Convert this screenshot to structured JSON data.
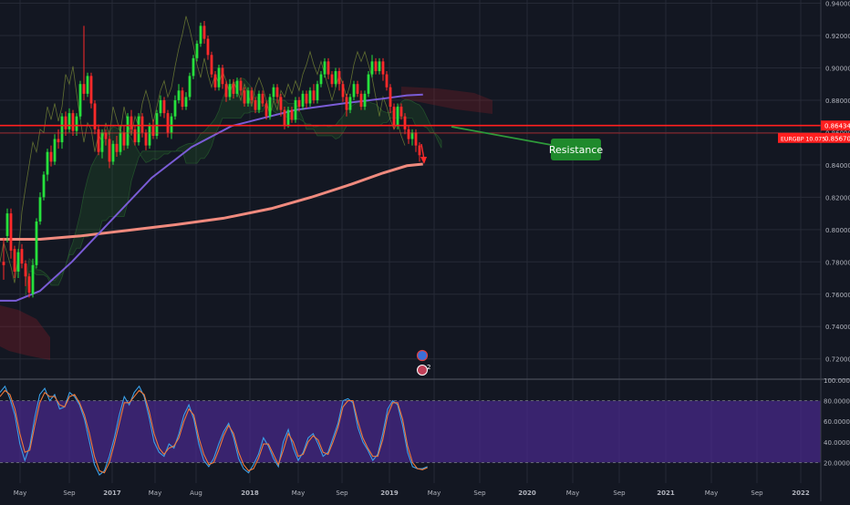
{
  "colors": {
    "bg": "#131722",
    "grid": "#262a36",
    "bull": "#26e03c",
    "bear": "#ff2a2a",
    "ema200": "#f08a7e",
    "ema100": "#7a5cd6",
    "resistance": "#ff1f1f",
    "callout": "#1f8a2c",
    "stoch_band": "#4a2a8e",
    "stoch_k": "#3aa0e8",
    "stoch_d": "#f07a3a"
  },
  "symbol_tag": "EURGBP 10.075",
  "price_labels": {
    "resistance": "0.86434",
    "current": "0.85670"
  },
  "callout": {
    "text": "Resistance"
  },
  "markers": [
    "2"
  ],
  "chart_data": [
    {
      "type": "candlestick",
      "title": "",
      "y_ticks": [
        "0.94000",
        "0.92000",
        "0.90000",
        "0.88000",
        "0.86000",
        "0.84000",
        "0.82000",
        "0.80000",
        "0.78000",
        "0.76000",
        "0.74000",
        "0.72000"
      ],
      "ylim": [
        0.708,
        0.942
      ],
      "x_ticks": [
        "May",
        "Sep",
        "2017",
        "May",
        "Aug",
        "2018",
        "May",
        "Sep",
        "2019",
        "May",
        "Sep",
        "2020",
        "May",
        "Sep",
        "2021",
        "May",
        "Sep",
        "2022"
      ],
      "resistance_level": 0.86434,
      "current_price": 0.8567,
      "ema100": [
        [
          0,
          0.756
        ],
        [
          10,
          0.756
        ],
        [
          25,
          0.762
        ],
        [
          45,
          0.78
        ],
        [
          70,
          0.806
        ],
        [
          95,
          0.832
        ],
        [
          120,
          0.851
        ],
        [
          145,
          0.864
        ],
        [
          165,
          0.869
        ],
        [
          185,
          0.874
        ],
        [
          215,
          0.878
        ],
        [
          240,
          0.881
        ],
        [
          255,
          0.883
        ],
        [
          265,
          0.8835
        ]
      ],
      "ema200": [
        [
          0,
          0.794
        ],
        [
          25,
          0.794
        ],
        [
          50,
          0.796
        ],
        [
          80,
          0.7995
        ],
        [
          110,
          0.803
        ],
        [
          140,
          0.807
        ],
        [
          170,
          0.813
        ],
        [
          195,
          0.82
        ],
        [
          220,
          0.828
        ],
        [
          240,
          0.835
        ],
        [
          255,
          0.8395
        ],
        [
          265,
          0.8405
        ]
      ],
      "candles": [
        [
          0.78,
          0.778,
          0.795,
          0.769
        ],
        [
          0.796,
          0.81,
          0.813,
          0.792
        ],
        [
          0.81,
          0.787,
          0.813,
          0.782
        ],
        [
          0.788,
          0.774,
          0.79,
          0.77
        ],
        [
          0.774,
          0.786,
          0.788,
          0.77
        ],
        [
          0.788,
          0.779,
          0.791,
          0.776
        ],
        [
          0.779,
          0.771,
          0.781,
          0.765
        ],
        [
          0.771,
          0.761,
          0.773,
          0.758
        ],
        [
          0.76,
          0.778,
          0.782,
          0.758
        ],
        [
          0.778,
          0.805,
          0.807,
          0.776
        ],
        [
          0.805,
          0.82,
          0.823,
          0.803
        ],
        [
          0.82,
          0.834,
          0.836,
          0.818
        ],
        [
          0.834,
          0.848,
          0.85,
          0.83
        ],
        [
          0.848,
          0.842,
          0.852,
          0.839
        ],
        [
          0.842,
          0.856,
          0.859,
          0.84
        ],
        [
          0.856,
          0.854,
          0.862,
          0.85
        ],
        [
          0.854,
          0.87,
          0.872,
          0.85
        ],
        [
          0.87,
          0.862,
          0.873,
          0.858
        ],
        [
          0.862,
          0.872,
          0.875,
          0.86
        ],
        [
          0.872,
          0.861,
          0.874,
          0.858
        ],
        [
          0.861,
          0.87,
          0.872,
          0.858
        ],
        [
          0.87,
          0.89,
          0.892,
          0.868
        ],
        [
          0.89,
          0.884,
          0.926,
          0.88
        ],
        [
          0.884,
          0.895,
          0.897,
          0.882
        ],
        [
          0.895,
          0.878,
          0.897,
          0.875
        ],
        [
          0.878,
          0.862,
          0.88,
          0.859
        ],
        [
          0.862,
          0.848,
          0.865,
          0.846
        ],
        [
          0.848,
          0.86,
          0.862,
          0.844
        ],
        [
          0.86,
          0.856,
          0.862,
          0.852
        ],
        [
          0.856,
          0.842,
          0.858,
          0.838
        ],
        [
          0.842,
          0.853,
          0.855,
          0.84
        ],
        [
          0.853,
          0.848,
          0.858,
          0.845
        ],
        [
          0.848,
          0.86,
          0.864,
          0.846
        ],
        [
          0.86,
          0.852,
          0.864,
          0.849
        ],
        [
          0.852,
          0.87,
          0.872,
          0.85
        ],
        [
          0.87,
          0.862,
          0.874,
          0.86
        ],
        [
          0.862,
          0.854,
          0.864,
          0.852
        ],
        [
          0.854,
          0.87,
          0.872,
          0.852
        ],
        [
          0.87,
          0.86,
          0.872,
          0.857
        ],
        [
          0.86,
          0.852,
          0.862,
          0.849
        ],
        [
          0.852,
          0.864,
          0.866,
          0.85
        ],
        [
          0.864,
          0.858,
          0.868,
          0.856
        ],
        [
          0.858,
          0.872,
          0.874,
          0.856
        ],
        [
          0.872,
          0.88,
          0.883,
          0.87
        ],
        [
          0.88,
          0.872,
          0.882,
          0.869
        ],
        [
          0.872,
          0.86,
          0.874,
          0.857
        ],
        [
          0.86,
          0.87,
          0.872,
          0.856
        ],
        [
          0.87,
          0.88,
          0.883,
          0.868
        ],
        [
          0.88,
          0.886,
          0.89,
          0.878
        ],
        [
          0.886,
          0.876,
          0.888,
          0.874
        ],
        [
          0.876,
          0.882,
          0.885,
          0.874
        ],
        [
          0.882,
          0.895,
          0.897,
          0.88
        ],
        [
          0.895,
          0.906,
          0.908,
          0.893
        ],
        [
          0.906,
          0.915,
          0.917,
          0.904
        ],
        [
          0.915,
          0.926,
          0.928,
          0.913
        ],
        [
          0.926,
          0.918,
          0.929,
          0.915
        ],
        [
          0.918,
          0.908,
          0.92,
          0.905
        ],
        [
          0.908,
          0.896,
          0.91,
          0.894
        ],
        [
          0.896,
          0.888,
          0.898,
          0.886
        ],
        [
          0.888,
          0.9,
          0.902,
          0.886
        ],
        [
          0.9,
          0.89,
          0.902,
          0.887
        ],
        [
          0.89,
          0.882,
          0.892,
          0.879
        ],
        [
          0.882,
          0.89,
          0.893,
          0.88
        ],
        [
          0.89,
          0.884,
          0.893,
          0.881
        ],
        [
          0.884,
          0.892,
          0.894,
          0.882
        ],
        [
          0.892,
          0.886,
          0.894,
          0.883
        ],
        [
          0.886,
          0.878,
          0.888,
          0.876
        ],
        [
          0.878,
          0.886,
          0.888,
          0.876
        ],
        [
          0.886,
          0.88,
          0.888,
          0.878
        ],
        [
          0.88,
          0.874,
          0.882,
          0.872
        ],
        [
          0.874,
          0.884,
          0.886,
          0.872
        ],
        [
          0.884,
          0.878,
          0.886,
          0.876
        ],
        [
          0.878,
          0.87,
          0.88,
          0.868
        ],
        [
          0.87,
          0.882,
          0.884,
          0.868
        ],
        [
          0.882,
          0.888,
          0.89,
          0.88
        ],
        [
          0.888,
          0.882,
          0.89,
          0.878
        ],
        [
          0.882,
          0.874,
          0.884,
          0.87
        ],
        [
          0.874,
          0.864,
          0.876,
          0.862
        ],
        [
          0.864,
          0.874,
          0.876,
          0.863
        ],
        [
          0.874,
          0.868,
          0.876,
          0.866
        ],
        [
          0.868,
          0.88,
          0.882,
          0.866
        ],
        [
          0.88,
          0.876,
          0.882,
          0.873
        ],
        [
          0.876,
          0.884,
          0.886,
          0.874
        ],
        [
          0.884,
          0.878,
          0.886,
          0.875
        ],
        [
          0.878,
          0.886,
          0.888,
          0.876
        ],
        [
          0.886,
          0.88,
          0.89,
          0.878
        ],
        [
          0.88,
          0.89,
          0.892,
          0.878
        ],
        [
          0.89,
          0.896,
          0.898,
          0.888
        ],
        [
          0.896,
          0.904,
          0.906,
          0.894
        ],
        [
          0.904,
          0.896,
          0.906,
          0.893
        ],
        [
          0.896,
          0.89,
          0.898,
          0.888
        ],
        [
          0.89,
          0.898,
          0.9,
          0.888
        ],
        [
          0.898,
          0.89,
          0.9,
          0.886
        ],
        [
          0.89,
          0.882,
          0.892,
          0.879
        ],
        [
          0.882,
          0.874,
          0.884,
          0.87
        ],
        [
          0.874,
          0.882,
          0.884,
          0.872
        ],
        [
          0.882,
          0.89,
          0.892,
          0.88
        ],
        [
          0.89,
          0.884,
          0.892,
          0.882
        ],
        [
          0.884,
          0.876,
          0.886,
          0.874
        ],
        [
          0.876,
          0.884,
          0.886,
          0.874
        ],
        [
          0.884,
          0.896,
          0.898,
          0.882
        ],
        [
          0.896,
          0.904,
          0.908,
          0.894
        ],
        [
          0.904,
          0.898,
          0.906,
          0.896
        ],
        [
          0.898,
          0.904,
          0.906,
          0.896
        ],
        [
          0.904,
          0.896,
          0.906,
          0.892
        ],
        [
          0.896,
          0.888,
          0.898,
          0.886
        ],
        [
          0.888,
          0.876,
          0.89,
          0.872
        ],
        [
          0.876,
          0.864,
          0.878,
          0.862
        ],
        [
          0.864,
          0.876,
          0.878,
          0.862
        ],
        [
          0.876,
          0.87,
          0.878,
          0.868
        ],
        [
          0.87,
          0.862,
          0.872,
          0.859
        ],
        [
          0.862,
          0.856,
          0.864,
          0.853
        ],
        [
          0.856,
          0.86,
          0.862,
          0.852
        ],
        [
          0.86,
          0.852,
          0.862,
          0.848
        ],
        [
          0.852,
          0.846,
          0.854,
          0.842
        ]
      ]
    },
    {
      "type": "line",
      "title": "",
      "y_ticks": [
        "100.0000",
        "80.0000",
        "60.0000",
        "40.0000",
        "20.0000"
      ],
      "ylim": [
        0,
        100
      ],
      "band": [
        20,
        80
      ],
      "series": [
        {
          "values": [
            88,
            94,
            82,
            66,
            38,
            22,
            36,
            64,
            86,
            92,
            80,
            86,
            72,
            74,
            88,
            84,
            76,
            62,
            40,
            18,
            8,
            12,
            26,
            44,
            66,
            84,
            76,
            88,
            94,
            84,
            64,
            40,
            30,
            26,
            38,
            34,
            48,
            66,
            76,
            62,
            38,
            22,
            16,
            24,
            38,
            50,
            58,
            44,
            24,
            14,
            10,
            18,
            28,
            44,
            36,
            24,
            16,
            40,
            52,
            34,
            22,
            30,
            44,
            48,
            38,
            26,
            30,
            44,
            58,
            80,
            82,
            78,
            54,
            40,
            32,
            22,
            28,
            48,
            72,
            80,
            76,
            56,
            30,
            16,
            14,
            14,
            16
          ]
        },
        {
          "values": [
            84,
            90,
            86,
            72,
            48,
            30,
            32,
            56,
            78,
            88,
            84,
            84,
            76,
            74,
            84,
            86,
            78,
            66,
            48,
            26,
            12,
            10,
            20,
            38,
            58,
            78,
            78,
            84,
            90,
            86,
            70,
            48,
            34,
            28,
            34,
            36,
            44,
            60,
            72,
            66,
            44,
            28,
            18,
            20,
            32,
            46,
            56,
            48,
            30,
            18,
            12,
            14,
            24,
            38,
            38,
            28,
            18,
            32,
            48,
            40,
            26,
            28,
            40,
            46,
            42,
            30,
            28,
            40,
            54,
            74,
            80,
            80,
            60,
            44,
            34,
            26,
            26,
            42,
            66,
            78,
            78,
            62,
            36,
            20,
            14,
            13,
            15
          ]
        }
      ]
    }
  ]
}
